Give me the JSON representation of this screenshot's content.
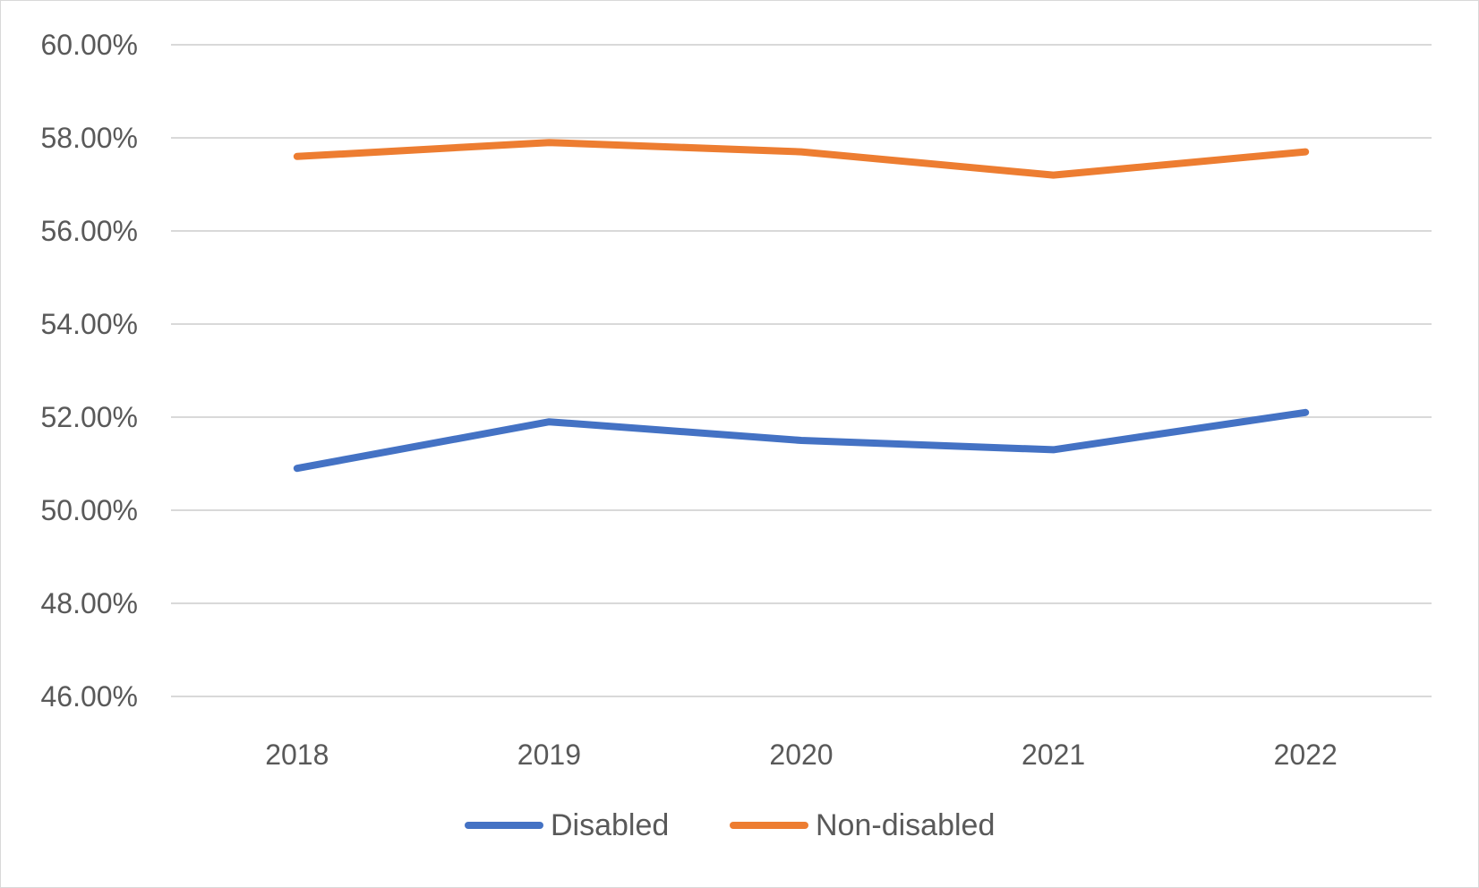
{
  "chart_data": {
    "type": "line",
    "title": "",
    "xlabel": "",
    "ylabel": "",
    "categories": [
      "2018",
      "2019",
      "2020",
      "2021",
      "2022"
    ],
    "ylim": [
      0.46,
      0.6
    ],
    "yticks": [
      0.46,
      0.48,
      0.5,
      0.52,
      0.54,
      0.56,
      0.58,
      0.6
    ],
    "ytick_labels": [
      "46.00%",
      "48.00%",
      "50.00%",
      "52.00%",
      "54.00%",
      "56.00%",
      "58.00%",
      "60.00%"
    ],
    "grid": true,
    "legend_position": "bottom",
    "series": [
      {
        "name": "Disabled",
        "color": "#4472c4",
        "values": [
          0.509,
          0.519,
          0.515,
          0.513,
          0.521
        ]
      },
      {
        "name": "Non-disabled",
        "color": "#ed7d31",
        "values": [
          0.576,
          0.579,
          0.577,
          0.572,
          0.577
        ]
      }
    ]
  }
}
